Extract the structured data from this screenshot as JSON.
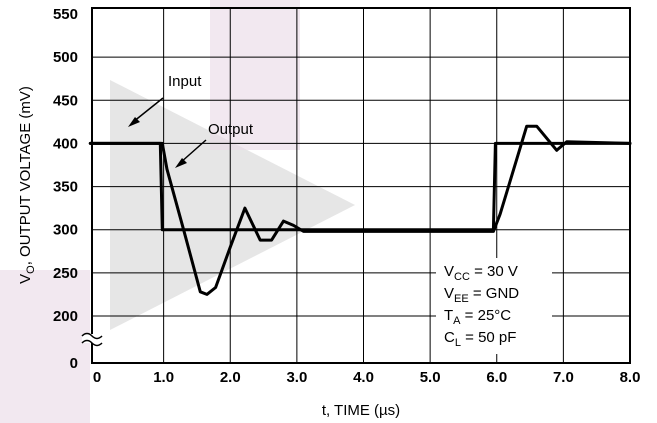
{
  "chart_data": {
    "type": "line",
    "xlabel": "t, TIME  (µs)",
    "ylabel": "VO, OUTPUT VOLTAGE (mV)",
    "ylabel_main": "V",
    "ylabel_sub": "O",
    "ylabel_rest": ", OUTPUT VOLTAGE (mV)",
    "xlim": [
      0,
      8
    ],
    "ylim": [
      0,
      550
    ],
    "y_axis_break": "between 0 and 200",
    "grid": true,
    "x_ticks": [
      {
        "value": 0,
        "label": "0"
      },
      {
        "value": 1,
        "label": "1.0"
      },
      {
        "value": 2,
        "label": "2.0"
      },
      {
        "value": 3,
        "label": "3.0"
      },
      {
        "value": 4,
        "label": "4.0"
      },
      {
        "value": 5,
        "label": "5.0"
      },
      {
        "value": 6,
        "label": "6.0"
      },
      {
        "value": 7,
        "label": "7.0"
      },
      {
        "value": 8,
        "label": "8.0"
      }
    ],
    "y_ticks": [
      {
        "value": 0,
        "label": "0"
      },
      {
        "value": 200,
        "label": "200"
      },
      {
        "value": 250,
        "label": "250"
      },
      {
        "value": 300,
        "label": "300"
      },
      {
        "value": 350,
        "label": "350"
      },
      {
        "value": 400,
        "label": "400"
      },
      {
        "value": 450,
        "label": "450"
      },
      {
        "value": 500,
        "label": "500"
      },
      {
        "value": 550,
        "label": "550"
      }
    ],
    "series": [
      {
        "name": "Input",
        "color": "#000000",
        "x": [
          -0.1,
          0.95,
          0.98,
          5.95,
          5.98,
          8.0
        ],
        "y": [
          400,
          400,
          300,
          300,
          400,
          400
        ]
      },
      {
        "name": "Output",
        "color": "#000000",
        "x": [
          -0.1,
          0.98,
          1.05,
          1.3,
          1.55,
          1.65,
          1.78,
          2.0,
          2.22,
          2.45,
          2.62,
          2.8,
          2.95,
          3.1,
          5.95,
          6.05,
          6.45,
          6.6,
          6.9,
          7.05,
          8.0
        ],
        "y": [
          400,
          400,
          370,
          300,
          228,
          225,
          233,
          280,
          325,
          288,
          288,
          310,
          305,
          298,
          298,
          318,
          420,
          420,
          392,
          402,
          400
        ]
      }
    ],
    "annotations": {
      "input": "Input",
      "output": "Output"
    },
    "conditions": [
      {
        "main": "V",
        "sub": "CC",
        "rest": " = 30 V"
      },
      {
        "main": "V",
        "sub": "EE",
        "rest": " = GND"
      },
      {
        "main": "T",
        "sub": "A",
        "rest": " = 25°C"
      },
      {
        "main": "C",
        "sub": "L",
        "rest": " = 50 pF"
      }
    ]
  }
}
